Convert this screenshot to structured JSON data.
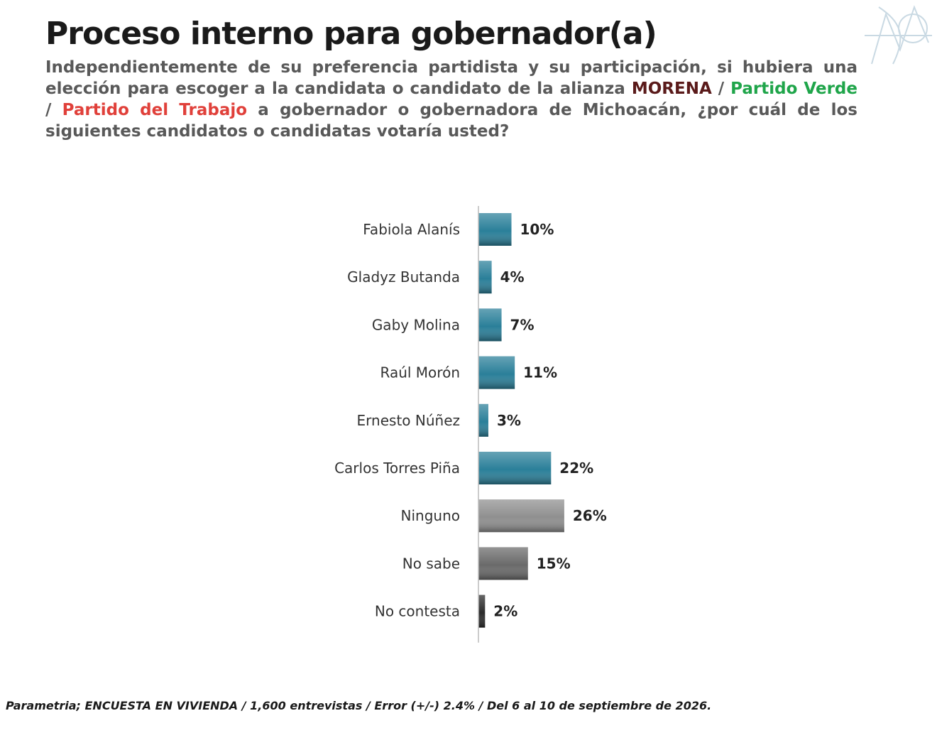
{
  "title": "Proceso interno para gobernador(a)",
  "subtitle": {
    "part1": "Independientemente de su preferencia partidista y su participación, si hubiera una elección para escoger a la candidata o candidato de la alianza ",
    "morena": "MORENA",
    "sep1": " / ",
    "verde": "Partido Verde",
    "sep2": " / ",
    "pt": "Partido del Trabajo",
    "part2": " a gobernador o gobernadora de Michoacán, ¿por cuál de los siguientes candidatos o candidatas votaría usted?"
  },
  "colors": {
    "morena": "#5a1a1a",
    "verde": "#1fa54a",
    "pt": "#e0403a",
    "candidate_bar": "#2a7f99",
    "ninguno_bar": "#8f8f8f",
    "nosabe_bar": "#6a6a6a",
    "nocontesta_bar": "#2b2b2b"
  },
  "chart_data": {
    "type": "bar",
    "orientation": "horizontal",
    "categories": [
      "Fabiola Alanís",
      "Gladyz Butanda",
      "Gaby Molina",
      "Raúl Morón",
      "Ernesto Núñez",
      "Carlos Torres Piña",
      "Ninguno",
      "No sabe",
      "No contesta"
    ],
    "values": [
      10,
      4,
      7,
      11,
      3,
      22,
      26,
      15,
      2
    ],
    "value_labels": [
      "10%",
      "4%",
      "7%",
      "11%",
      "3%",
      "22%",
      "26%",
      "15%",
      "2%"
    ],
    "bar_colors": [
      "#2a7f99",
      "#2a7f99",
      "#2a7f99",
      "#2a7f99",
      "#2a7f99",
      "#2a7f99",
      "#8f8f8f",
      "#6a6a6a",
      "#2b2b2b"
    ],
    "title": "",
    "xlabel": "",
    "ylabel": "",
    "grid": false,
    "legend": false
  },
  "footnote": "Parametria; ENCUESTA EN VIVIENDA / 1,600 entrevistas / Error (+/-) 2.4% / Del 6 al 10 de septiembre de 2026."
}
